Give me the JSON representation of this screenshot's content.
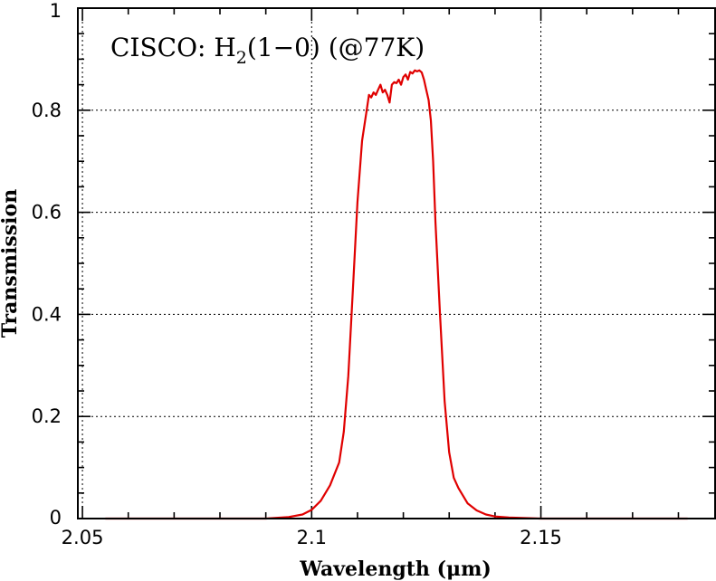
{
  "chart_data": {
    "type": "line",
    "title": {
      "prefix": "CISCO:  H",
      "subscript": "2",
      "suffix": "(1−0)  (@77K)"
    },
    "xlabel": "Wavelength (μm)",
    "ylabel": "Transmission",
    "xlim": [
      2.049,
      2.188
    ],
    "ylim": [
      0,
      1
    ],
    "x_ticks": [
      {
        "value": 2.05,
        "label": "2.05"
      },
      {
        "value": 2.1,
        "label": "2.1"
      },
      {
        "value": 2.15,
        "label": "2.15"
      }
    ],
    "y_ticks": [
      {
        "value": 0,
        "label": "0"
      },
      {
        "value": 0.2,
        "label": "0.2"
      },
      {
        "value": 0.4,
        "label": "0.4"
      },
      {
        "value": 0.6,
        "label": "0.6"
      },
      {
        "value": 0.8,
        "label": "0.8"
      },
      {
        "value": 1,
        "label": "1"
      }
    ],
    "x_minor_step": 0.01,
    "y_minor_step": 0.05,
    "grid": true,
    "series": [
      {
        "name": "CISCO H2(1-0) @77K",
        "color": "#e00000",
        "x": [
          2.055,
          2.09,
          2.095,
          2.098,
          2.1,
          2.102,
          2.104,
          2.106,
          2.107,
          2.108,
          2.109,
          2.11,
          2.111,
          2.112,
          2.1125,
          2.113,
          2.1135,
          2.114,
          2.1145,
          2.115,
          2.1155,
          2.116,
          2.1165,
          2.117,
          2.1175,
          2.118,
          2.1185,
          2.119,
          2.1195,
          2.12,
          2.1205,
          2.121,
          2.1215,
          2.122,
          2.1225,
          2.123,
          2.1235,
          2.124,
          2.1245,
          2.125,
          2.1255,
          2.126,
          2.1265,
          2.127,
          2.128,
          2.129,
          2.13,
          2.131,
          2.132,
          2.133,
          2.134,
          2.136,
          2.138,
          2.14,
          2.143,
          2.146,
          2.15,
          2.155,
          2.165,
          2.182
        ],
        "y": [
          0,
          0,
          0.003,
          0.008,
          0.017,
          0.035,
          0.065,
          0.11,
          0.17,
          0.28,
          0.45,
          0.62,
          0.74,
          0.8,
          0.83,
          0.825,
          0.835,
          0.83,
          0.84,
          0.85,
          0.835,
          0.84,
          0.83,
          0.815,
          0.85,
          0.855,
          0.853,
          0.86,
          0.85,
          0.865,
          0.87,
          0.86,
          0.875,
          0.872,
          0.878,
          0.876,
          0.878,
          0.874,
          0.86,
          0.84,
          0.82,
          0.78,
          0.7,
          0.58,
          0.4,
          0.23,
          0.13,
          0.08,
          0.06,
          0.045,
          0.03,
          0.016,
          0.008,
          0.004,
          0.002,
          0.001,
          0,
          0,
          0,
          0
        ]
      }
    ]
  }
}
